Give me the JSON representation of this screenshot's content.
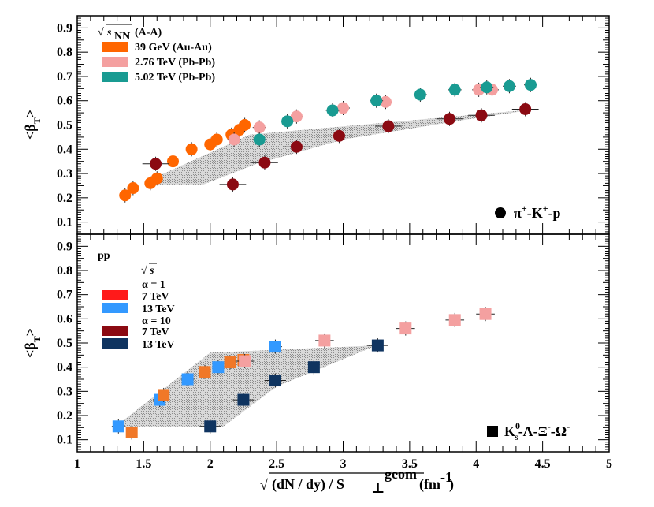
{
  "chart_data": [
    {
      "type": "scatter",
      "panel": "top",
      "ylabel": "<β_T>",
      "xlim": [
        1,
        5
      ],
      "ylim": [
        0.05,
        0.95
      ],
      "yticks": [
        "0.1",
        "0.2",
        "0.3",
        "0.4",
        "0.5",
        "0.6",
        "0.7",
        "0.8",
        "0.9"
      ],
      "legend_title": "√s_NN (A-A)",
      "legend_title_prefix": "√",
      "legend_title_sym": "s",
      "legend_title_sub": "NN",
      "legend_title_suffix": "(A-A)",
      "annotation": "π⁺-K⁺-p",
      "annotation_parts": [
        "π",
        "+",
        "-K",
        "+",
        "-p"
      ],
      "band": [
        [
          1.55,
          0.255
        ],
        [
          1.95,
          0.255
        ],
        [
          2.35,
          0.34
        ],
        [
          3.0,
          0.44
        ],
        [
          3.9,
          0.52
        ],
        [
          4.45,
          0.565
        ],
        [
          2.3,
          0.46
        ],
        [
          1.55,
          0.275
        ]
      ],
      "series": [
        {
          "name": "39 GeV (Au-Au)",
          "label": "39 GeV (Au-Au)",
          "color": "#ff6600",
          "marker": "circle",
          "xerr": 0.04,
          "x": [
            1.36,
            1.42,
            1.55,
            1.6,
            1.72,
            1.86,
            2.0,
            2.05,
            2.16,
            2.22,
            2.26
          ],
          "y": [
            0.21,
            0.24,
            0.26,
            0.28,
            0.35,
            0.4,
            0.42,
            0.44,
            0.46,
            0.48,
            0.5
          ]
        },
        {
          "name": "2.76 TeV (Pb-Pb)",
          "label": "2.76 TeV (Pb-Pb)",
          "color": "#f4a0a0",
          "marker": "circle",
          "xerr": 0.05,
          "x": [
            2.18,
            2.37,
            2.65,
            3.0,
            3.32,
            4.02,
            4.12
          ],
          "y": [
            0.44,
            0.49,
            0.535,
            0.57,
            0.595,
            0.645,
            0.645
          ]
        },
        {
          "name": "5.02 TeV (Pb-Pb)",
          "label": "5.02 TeV (Pb-Pb)",
          "color": "#199b92",
          "marker": "circle",
          "xerr": 0.05,
          "x": [
            2.37,
            2.58,
            2.92,
            3.25,
            3.58,
            3.84,
            4.08,
            4.25,
            4.41
          ],
          "y": [
            0.44,
            0.515,
            0.56,
            0.6,
            0.625,
            0.645,
            0.655,
            0.66,
            0.665
          ]
        },
        {
          "name": "dark red",
          "color": "#8b0a12",
          "marker": "circle",
          "xerr": 0.1,
          "x": [
            1.59,
            2.17,
            2.41,
            2.65,
            2.97,
            3.34,
            3.8,
            4.04,
            4.37
          ],
          "y": [
            0.34,
            0.255,
            0.345,
            0.41,
            0.455,
            0.495,
            0.525,
            0.54,
            0.565
          ]
        }
      ]
    },
    {
      "type": "scatter",
      "panel": "bottom",
      "ylabel": "<β_T>",
      "xlabel": "√(dN / dy) / S⊥geom (fm⁻¹)",
      "xlabel_parts": [
        "√",
        "(dN / dy) / S",
        "⊥",
        "geom",
        "(fm",
        "-1",
        ")"
      ],
      "xlim": [
        1,
        5
      ],
      "ylim": [
        0.05,
        0.95
      ],
      "xticks": [
        "1",
        "1.5",
        "2",
        "2.5",
        "3",
        "3.5",
        "4",
        "4.5",
        "5"
      ],
      "yticks": [
        "0.1",
        "0.2",
        "0.3",
        "0.4",
        "0.5",
        "0.6",
        "0.7",
        "0.8",
        "0.9"
      ],
      "legend_title": "pp",
      "legend_sub": "√s",
      "legend_sub_prefix": "√",
      "legend_sub_sym": "s",
      "alpha1": "α = 1",
      "alpha10": "α = 10",
      "annotation": "K⁰s-Λ-Ξ⁻-Ω⁻",
      "annotation_parts": [
        "K",
        "0",
        "s",
        "-Λ-Ξ",
        "-",
        "-Ω",
        "-"
      ],
      "band": [
        [
          1.3,
          0.155
        ],
        [
          2.1,
          0.155
        ],
        [
          2.5,
          0.32
        ],
        [
          3.25,
          0.49
        ],
        [
          2.0,
          0.46
        ],
        [
          1.3,
          0.16
        ]
      ],
      "series": [
        {
          "name": "7 TeV (α = 1)",
          "label": "7 TeV",
          "color": "#ff1a1a",
          "marker": "square",
          "xerr": 0.05,
          "x": [],
          "y": []
        },
        {
          "name": "13 TeV (α = 1)",
          "label": "13 TeV",
          "color": "#3399ff",
          "marker": "square",
          "xerr": 0.05,
          "x": [
            1.31,
            1.62,
            1.83,
            2.06,
            2.49
          ],
          "y": [
            0.155,
            0.265,
            0.35,
            0.4,
            0.485
          ]
        },
        {
          "name": "7 TeV (α = 10)",
          "label": "7 TeV",
          "color": "#8b0a12",
          "marker": "square",
          "xerr": 0.05,
          "x": [],
          "y": []
        },
        {
          "name": "13 TeV (α = 10)",
          "label": "13 TeV",
          "color": "#0f3460",
          "marker": "square",
          "xerr": 0.08,
          "x": [
            2.0,
            2.25,
            2.49,
            2.78,
            3.26
          ],
          "y": [
            0.155,
            0.265,
            0.345,
            0.4,
            0.49
          ]
        },
        {
          "name": "orange squares",
          "color": "#f07828",
          "marker": "square",
          "xerr": 0.04,
          "x": [
            1.41,
            1.65,
            1.96,
            2.15,
            2.25
          ],
          "y": [
            0.13,
            0.285,
            0.38,
            0.42,
            0.43
          ]
        },
        {
          "name": "pink squares",
          "color": "#f4a0a0",
          "marker": "square",
          "xerr": 0.07,
          "x": [
            2.86,
            3.47,
            3.84,
            4.07,
            2.26
          ],
          "y": [
            0.51,
            0.56,
            0.595,
            0.62,
            0.425
          ]
        }
      ]
    }
  ]
}
